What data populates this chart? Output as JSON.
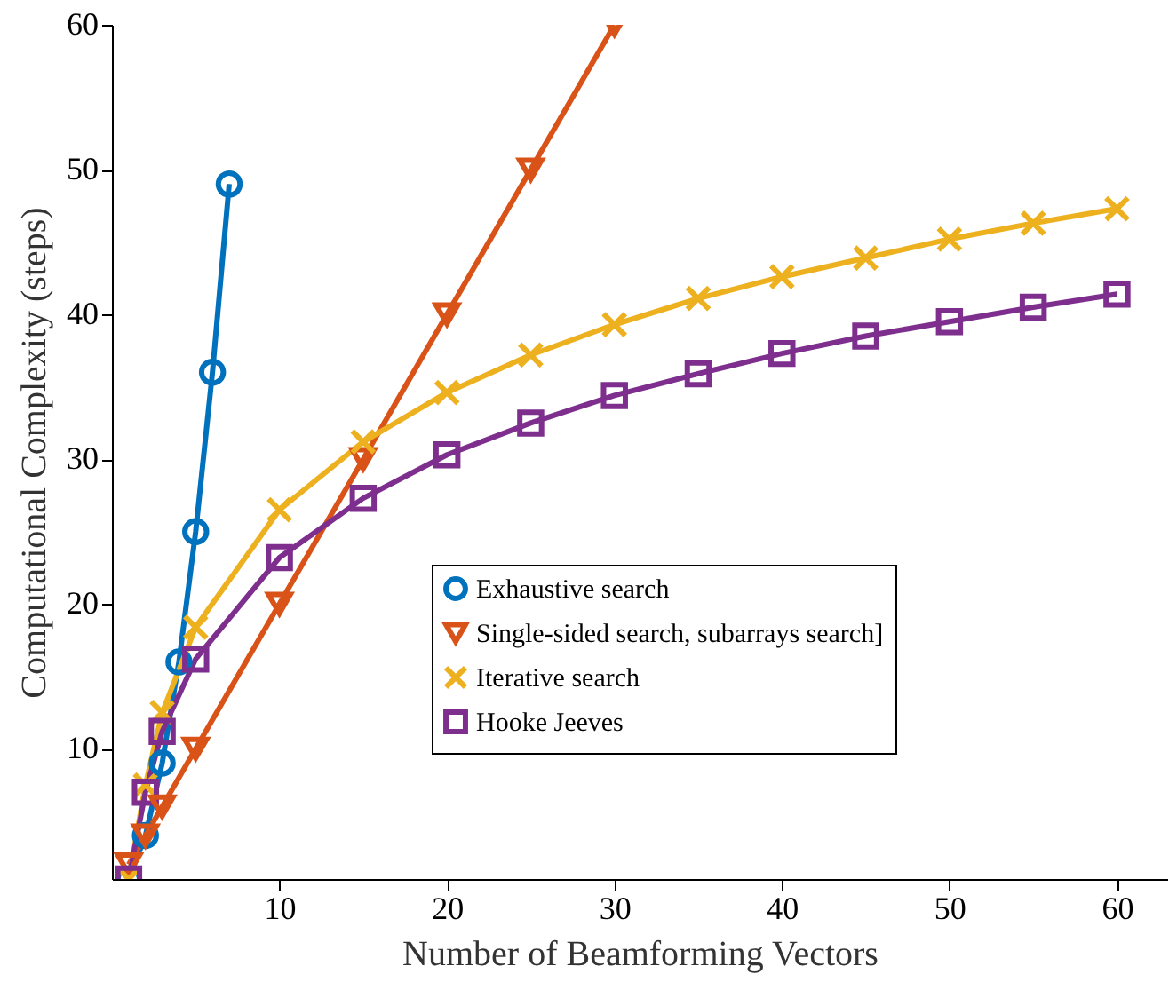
{
  "chart_data": {
    "type": "line",
    "xlabel": "Number of Beamforming Vectors",
    "ylabel": "Computational Complexity (steps)",
    "xlim": [
      0,
      63
    ],
    "ylim": [
      1,
      60
    ],
    "xticks": [
      10,
      20,
      30,
      40,
      50,
      60
    ],
    "yticks": [
      10,
      20,
      30,
      40,
      50,
      60
    ],
    "grid": false,
    "legend": "right",
    "line_style": "solid",
    "series": [
      {
        "name": "Exhaustive search",
        "color": "#0072bd",
        "marker": "circle",
        "x": [
          1,
          2,
          3,
          4,
          5,
          6,
          7
        ],
        "values": [
          1,
          4,
          9,
          16,
          25,
          36,
          49
        ]
      },
      {
        "name": "Single-sided search, subarrays search]",
        "color": "#d95319",
        "marker": "triangle",
        "x": [
          1,
          2,
          3,
          5,
          10,
          15,
          20,
          25,
          30
        ],
        "values": [
          2,
          4,
          6,
          10,
          20,
          30,
          40,
          50,
          60
        ]
      },
      {
        "name": "Iterative search",
        "color": "#edb120",
        "marker": "cross",
        "x": [
          1,
          2,
          3,
          5,
          10,
          15,
          20,
          25,
          30,
          35,
          40,
          45,
          50,
          55,
          60
        ],
        "values": [
          1,
          7.5,
          12.5,
          18.4,
          26.5,
          31.2,
          34.6,
          37.2,
          39.3,
          41.1,
          42.6,
          43.9,
          45.2,
          46.3,
          47.3
        ]
      },
      {
        "name": "Hooke Jeeves",
        "color": "#7e2f8e",
        "marker": "square",
        "x": [
          1,
          2,
          3,
          5,
          10,
          15,
          20,
          25,
          30,
          35,
          40,
          45,
          50,
          55,
          60
        ],
        "values": [
          1,
          7,
          11.2,
          16.2,
          23.2,
          27.3,
          30.3,
          32.5,
          34.4,
          35.9,
          37.3,
          38.5,
          39.5,
          40.5,
          41.4
        ]
      }
    ]
  }
}
